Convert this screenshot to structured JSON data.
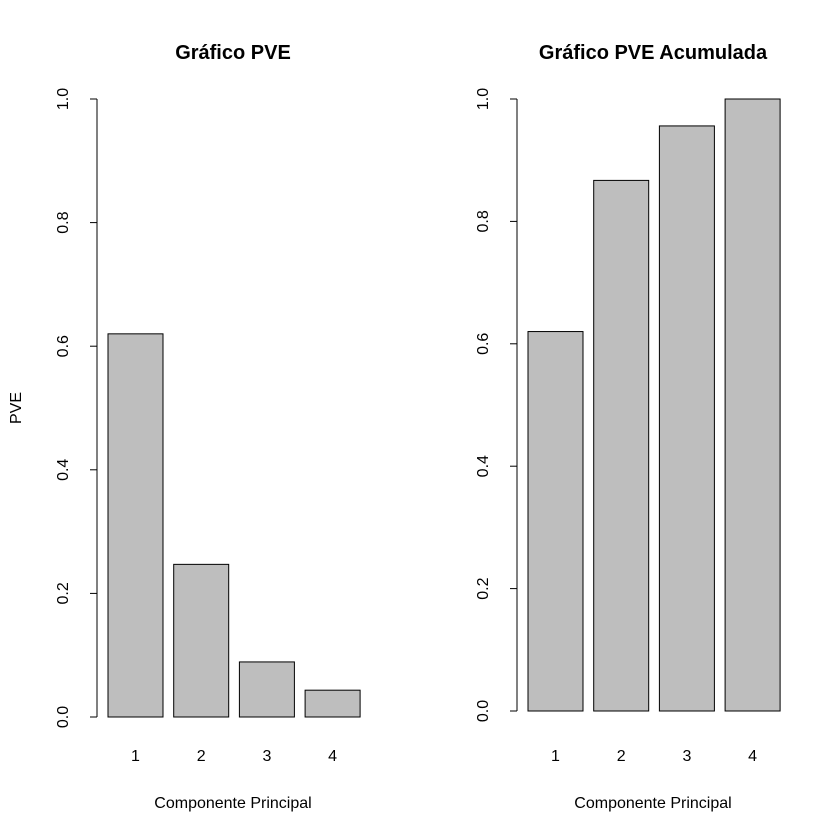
{
  "chart_data": [
    {
      "type": "bar",
      "title": "Gráfico PVE",
      "xlabel": "Componente Principal",
      "ylabel": "PVE",
      "categories": [
        "1",
        "2",
        "3",
        "4"
      ],
      "values": [
        0.62,
        0.247,
        0.0891,
        0.0434
      ],
      "ylim": [
        0,
        1
      ],
      "yticks": [
        "0.0",
        "0.2",
        "0.4",
        "0.6",
        "0.8",
        "1.0"
      ],
      "grid": false,
      "bar_color": "#bebebe"
    },
    {
      "type": "bar",
      "title": "Gráfico PVE Acumulada",
      "xlabel": "Componente Principal",
      "ylabel": "",
      "categories": [
        "1",
        "2",
        "3",
        "4"
      ],
      "values": [
        0.62,
        0.867,
        0.956,
        1.0
      ],
      "ylim": [
        0,
        1
      ],
      "yticks": [
        "0.0",
        "0.2",
        "0.4",
        "0.6",
        "0.8",
        "1.0"
      ],
      "grid": false,
      "bar_color": "#bebebe"
    }
  ]
}
